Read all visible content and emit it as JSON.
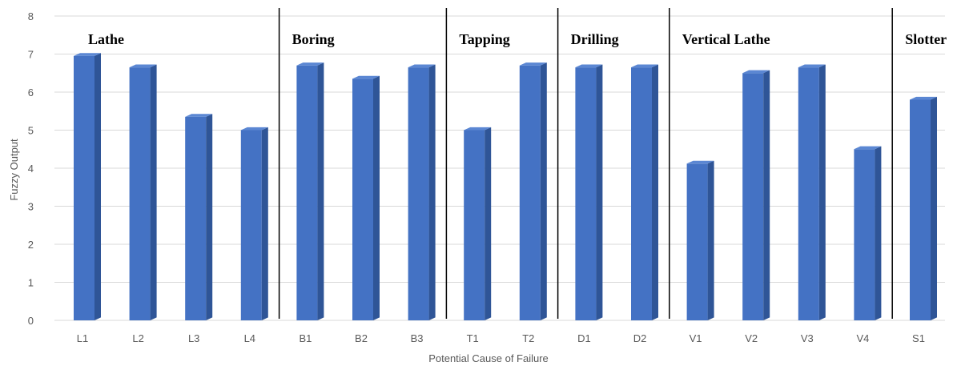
{
  "chart_data": {
    "type": "bar",
    "title": "",
    "xlabel": "Potential Cause of Failure",
    "ylabel": "Fuzzy Output",
    "ylim": [
      0,
      8
    ],
    "yticks": [
      "0",
      "1",
      "2",
      "3",
      "4",
      "5",
      "6",
      "7",
      "8"
    ],
    "grid": true,
    "style": "3d-column",
    "categories": [
      "L1",
      "L2",
      "L3",
      "L4",
      "B1",
      "B2",
      "B3",
      "T1",
      "T2",
      "D1",
      "D2",
      "V1",
      "V2",
      "V3",
      "V4",
      "S1"
    ],
    "values": [
      6.95,
      6.65,
      5.35,
      5.0,
      6.7,
      6.35,
      6.65,
      5.0,
      6.7,
      6.65,
      6.65,
      4.12,
      6.5,
      6.65,
      4.5,
      5.8
    ],
    "groups": [
      {
        "label": "Lathe",
        "categories": [
          "L1",
          "L2",
          "L3",
          "L4"
        ]
      },
      {
        "label": "Boring",
        "categories": [
          "B1",
          "B2",
          "B3"
        ]
      },
      {
        "label": "Tapping",
        "categories": [
          "T1",
          "T2"
        ]
      },
      {
        "label": "Drilling",
        "categories": [
          "D1",
          "D2"
        ]
      },
      {
        "label": "Vertical Lathe",
        "categories": [
          "V1",
          "V2",
          "V3",
          "V4"
        ]
      },
      {
        "label": "Slotter",
        "categories": [
          "S1"
        ]
      }
    ],
    "colors": {
      "bar_front": "#4472C4",
      "bar_side": "#2F5597",
      "bar_top": "#5B87D3",
      "grid": "#D9D9D9",
      "divider": "#000000"
    }
  }
}
